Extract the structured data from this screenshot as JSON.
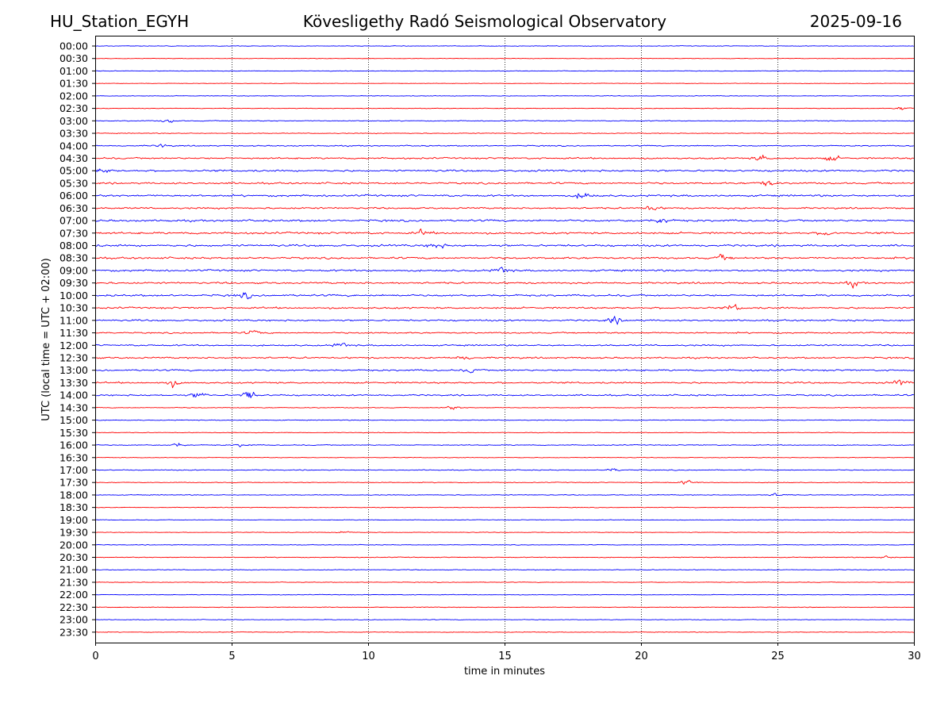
{
  "header": {
    "station": "HU_Station_EGYH",
    "observatory": "Kövesligethy Radó Seismological Observatory",
    "date": "2025-09-16"
  },
  "chart_data": {
    "type": "line",
    "title": "Kövesligethy Radó Seismological Observatory",
    "xlabel": "time in minutes",
    "ylabel": "UTC (local time = UTC + 02:00)",
    "xlim": [
      0,
      30
    ],
    "x_ticks": [
      0,
      5,
      10,
      15,
      20,
      25,
      30
    ],
    "x_tick_labels": [
      "0",
      "5",
      "10",
      "15",
      "20",
      "25",
      "30"
    ],
    "grid": "vertical dotted lines at 5-minute ticks",
    "colors": {
      "even_rows": "#0000ff",
      "odd_rows": "#ff0000",
      "grid": "#000000"
    },
    "row_labels": [
      "00:00",
      "00:30",
      "01:00",
      "01:30",
      "02:00",
      "02:30",
      "03:00",
      "03:30",
      "04:00",
      "04:30",
      "05:00",
      "05:30",
      "06:00",
      "06:30",
      "07:00",
      "07:30",
      "08:00",
      "08:30",
      "09:00",
      "09:30",
      "10:00",
      "10:30",
      "11:00",
      "11:30",
      "12:00",
      "12:30",
      "13:00",
      "13:30",
      "14:00",
      "14:30",
      "15:00",
      "15:30",
      "16:00",
      "16:30",
      "17:00",
      "17:30",
      "18:00",
      "18:30",
      "19:00",
      "19:30",
      "20:00",
      "20:30",
      "21:00",
      "21:30",
      "22:00",
      "22:30",
      "23:00",
      "23:30"
    ],
    "noise_level": [
      1.0,
      0.8,
      1.0,
      0.8,
      1.0,
      1.0,
      1.4,
      1.2,
      1.8,
      2.6,
      3.0,
      2.8,
      3.0,
      2.6,
      3.2,
      3.2,
      3.2,
      3.0,
      3.0,
      2.8,
      3.0,
      2.8,
      2.6,
      2.2,
      2.4,
      2.6,
      2.6,
      2.6,
      2.4,
      1.2,
      1.2,
      1.0,
      1.4,
      1.0,
      1.4,
      1.2,
      1.2,
      1.0,
      1.0,
      1.0,
      1.0,
      1.2,
      1.2,
      1.0,
      1.0,
      1.0,
      1.0,
      1.0
    ],
    "events": [
      {
        "row": "02:30",
        "minute": 29.6,
        "amplitude": 3
      },
      {
        "row": "03:00",
        "minute": 2.7,
        "amplitude": 3
      },
      {
        "row": "04:00",
        "minute": 2.4,
        "amplitude": 3
      },
      {
        "row": "04:30",
        "minute": 24.4,
        "amplitude": 6
      },
      {
        "row": "04:30",
        "minute": 27.0,
        "amplitude": 5
      },
      {
        "row": "05:00",
        "minute": 0.3,
        "amplitude": 4
      },
      {
        "row": "05:30",
        "minute": 24.6,
        "amplitude": 6
      },
      {
        "row": "06:00",
        "minute": 17.9,
        "amplitude": 7
      },
      {
        "row": "06:30",
        "minute": 20.4,
        "amplitude": 5
      },
      {
        "row": "07:00",
        "minute": 20.8,
        "amplitude": 5
      },
      {
        "row": "07:30",
        "minute": 12.0,
        "amplitude": 5
      },
      {
        "row": "07:30",
        "minute": 26.8,
        "amplitude": 6
      },
      {
        "row": "08:00",
        "minute": 12.5,
        "amplitude": 6
      },
      {
        "row": "08:30",
        "minute": 23.0,
        "amplitude": 5
      },
      {
        "row": "09:00",
        "minute": 14.9,
        "amplitude": 5
      },
      {
        "row": "09:30",
        "minute": 27.8,
        "amplitude": 5
      },
      {
        "row": "10:00",
        "minute": 5.5,
        "amplitude": 5
      },
      {
        "row": "10:30",
        "minute": 23.4,
        "amplitude": 5
      },
      {
        "row": "11:00",
        "minute": 19.0,
        "amplitude": 6
      },
      {
        "row": "11:30",
        "minute": 5.8,
        "amplitude": 4
      },
      {
        "row": "12:00",
        "minute": 9.0,
        "amplitude": 4
      },
      {
        "row": "12:30",
        "minute": 13.5,
        "amplitude": 4
      },
      {
        "row": "13:00",
        "minute": 13.8,
        "amplitude": 4
      },
      {
        "row": "13:30",
        "minute": 2.8,
        "amplitude": 6
      },
      {
        "row": "13:30",
        "minute": 29.5,
        "amplitude": 5
      },
      {
        "row": "14:00",
        "minute": 3.8,
        "amplitude": 6
      },
      {
        "row": "14:00",
        "minute": 5.6,
        "amplitude": 8
      },
      {
        "row": "14:30",
        "minute": 13.1,
        "amplitude": 3
      },
      {
        "row": "16:00",
        "minute": 3.0,
        "amplitude": 3
      },
      {
        "row": "16:00",
        "minute": 5.4,
        "amplitude": 3
      },
      {
        "row": "17:00",
        "minute": 19.0,
        "amplitude": 3
      },
      {
        "row": "17:30",
        "minute": 21.7,
        "amplitude": 4
      },
      {
        "row": "18:00",
        "minute": 25.0,
        "amplitude": 3
      },
      {
        "row": "19:30",
        "minute": 9.1,
        "amplitude": 3
      },
      {
        "row": "20:30",
        "minute": 29.0,
        "amplitude": 3
      }
    ]
  }
}
